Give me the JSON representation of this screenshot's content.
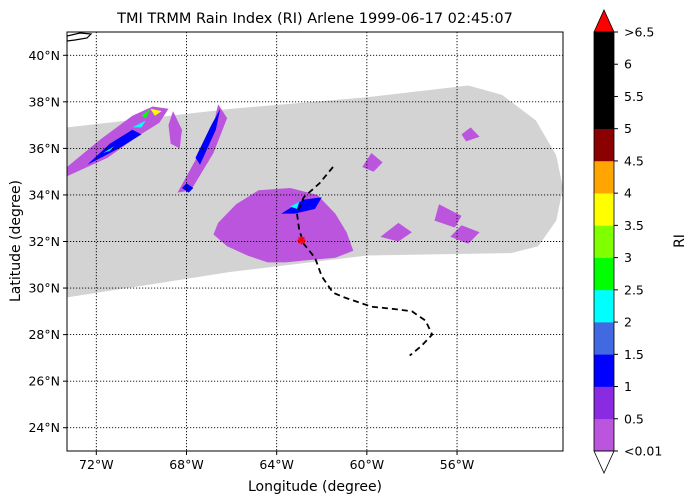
{
  "chart_data": {
    "type": "heatmap",
    "title": "TMI TRMM Rain Index (RI) Arlene 1999-06-17 02:45:07",
    "xlabel": "Longitude (degree)",
    "ylabel": "Latitude (degree)",
    "xlim": [
      -73.3,
      -51.3
    ],
    "ylim": [
      23.0,
      41.0
    ],
    "x_ticks": [
      {
        "value": -72,
        "label": "72°W"
      },
      {
        "value": -68,
        "label": "68°W"
      },
      {
        "value": -64,
        "label": "64°W"
      },
      {
        "value": -60,
        "label": "60°W"
      },
      {
        "value": -56,
        "label": "56°W"
      }
    ],
    "y_ticks": [
      {
        "value": 24,
        "label": "24°N"
      },
      {
        "value": 26,
        "label": "26°N"
      },
      {
        "value": 28,
        "label": "28°N"
      },
      {
        "value": 30,
        "label": "30°N"
      },
      {
        "value": 32,
        "label": "32°N"
      },
      {
        "value": 34,
        "label": "34°N"
      },
      {
        "value": 36,
        "label": "36°N"
      },
      {
        "value": 38,
        "label": "38°N"
      },
      {
        "value": 40,
        "label": "40°N"
      }
    ],
    "grid": "dotted",
    "swath_color": "#d3d3d3",
    "swath": [
      [
        -73.3,
        36.9
      ],
      [
        -66,
        37.7
      ],
      [
        -60,
        38.2
      ],
      [
        -55.5,
        38.7
      ],
      [
        -54,
        38.3
      ],
      [
        -52.5,
        37.2
      ],
      [
        -51.6,
        35.7
      ],
      [
        -51.3,
        34.3
      ],
      [
        -51.6,
        32.9
      ],
      [
        -52.4,
        31.8
      ],
      [
        -53.6,
        31.5
      ],
      [
        -60,
        31.4
      ],
      [
        -66,
        30.7
      ],
      [
        -73.3,
        29.6
      ]
    ],
    "rain_regions": [
      {
        "level": "purple",
        "poly": [
          [
            -66.6,
            32.8
          ],
          [
            -65.8,
            33.6
          ],
          [
            -64.8,
            34.2
          ],
          [
            -63.4,
            34.3
          ],
          [
            -62.2,
            34.0
          ],
          [
            -61.4,
            33.2
          ],
          [
            -60.9,
            32.4
          ],
          [
            -60.6,
            31.6
          ],
          [
            -61.4,
            31.3
          ],
          [
            -62.6,
            31.2
          ],
          [
            -63.6,
            31.1
          ],
          [
            -64.4,
            31.1
          ],
          [
            -65.3,
            31.4
          ],
          [
            -66.2,
            31.8
          ],
          [
            -66.8,
            32.3
          ]
        ]
      },
      {
        "level": "purple",
        "poly": [
          [
            -58.6,
            32.8
          ],
          [
            -58.0,
            32.4
          ],
          [
            -58.6,
            32.0
          ],
          [
            -59.4,
            32.2
          ]
        ]
      },
      {
        "level": "purple",
        "poly": [
          [
            -56.8,
            33.6
          ],
          [
            -55.8,
            33.1
          ],
          [
            -56.1,
            32.6
          ],
          [
            -57.0,
            32.9
          ]
        ]
      },
      {
        "level": "purple",
        "poly": [
          [
            -55.8,
            32.7
          ],
          [
            -55.0,
            32.4
          ],
          [
            -55.5,
            31.9
          ],
          [
            -56.3,
            32.2
          ]
        ]
      },
      {
        "level": "purple",
        "poly": [
          [
            -66.6,
            37.9
          ],
          [
            -66.2,
            37.3
          ],
          [
            -66.8,
            35.8
          ],
          [
            -67.8,
            34.2
          ],
          [
            -68.4,
            34.1
          ],
          [
            -67.6,
            35.5
          ],
          [
            -66.8,
            37.0
          ]
        ]
      },
      {
        "level": "purple",
        "poly": [
          [
            -68.6,
            37.6
          ],
          [
            -68.2,
            36.8
          ],
          [
            -68.3,
            36.0
          ],
          [
            -68.7,
            36.2
          ],
          [
            -68.8,
            37.0
          ]
        ]
      },
      {
        "level": "purple",
        "poly": [
          [
            -73.3,
            34.8
          ],
          [
            -71.5,
            35.6
          ],
          [
            -70.2,
            36.5
          ],
          [
            -69.2,
            37.1
          ],
          [
            -68.8,
            37.7
          ],
          [
            -69.5,
            37.8
          ],
          [
            -70.4,
            37.4
          ],
          [
            -71.8,
            36.4
          ],
          [
            -73.3,
            35.2
          ]
        ]
      },
      {
        "level": "purple",
        "poly": [
          [
            -59.8,
            35.8
          ],
          [
            -59.3,
            35.4
          ],
          [
            -59.7,
            35.0
          ],
          [
            -60.2,
            35.2
          ]
        ]
      },
      {
        "level": "purple",
        "poly": [
          [
            -55.4,
            36.9
          ],
          [
            -55.0,
            36.5
          ],
          [
            -55.6,
            36.3
          ],
          [
            -55.8,
            36.6
          ]
        ]
      },
      {
        "level": "purple",
        "poly": [
          [
            -63.6,
            32.0
          ],
          [
            -63.0,
            31.8
          ],
          [
            -62.9,
            31.5
          ],
          [
            -63.5,
            31.5
          ]
        ]
      },
      {
        "level": "blue",
        "poly": [
          [
            -63.8,
            33.2
          ],
          [
            -62.8,
            33.8
          ],
          [
            -62.0,
            33.9
          ],
          [
            -62.3,
            33.4
          ],
          [
            -63.2,
            33.2
          ]
        ]
      },
      {
        "level": "blue",
        "poly": [
          [
            -66.5,
            37.7
          ],
          [
            -66.7,
            36.8
          ],
          [
            -67.4,
            35.3
          ],
          [
            -67.6,
            35.6
          ],
          [
            -66.9,
            37.0
          ]
        ]
      },
      {
        "level": "blue",
        "poly": [
          [
            -68.0,
            34.5
          ],
          [
            -67.7,
            34.3
          ],
          [
            -67.9,
            34.1
          ],
          [
            -68.2,
            34.3
          ]
        ]
      },
      {
        "level": "blue",
        "poly": [
          [
            -72.4,
            35.3
          ],
          [
            -71.0,
            36.0
          ],
          [
            -70.0,
            36.6
          ],
          [
            -70.4,
            36.8
          ],
          [
            -71.4,
            36.2
          ]
        ]
      },
      {
        "level": "cyan",
        "poly": [
          [
            -63.4,
            33.5
          ],
          [
            -63.0,
            33.7
          ],
          [
            -63.1,
            33.4
          ]
        ]
      },
      {
        "level": "cyan",
        "poly": [
          [
            -71.7,
            35.8
          ],
          [
            -71.2,
            36.1
          ],
          [
            -71.4,
            35.9
          ]
        ]
      },
      {
        "level": "cyan",
        "poly": [
          [
            -70.4,
            36.9
          ],
          [
            -69.8,
            37.2
          ],
          [
            -70.0,
            36.9
          ]
        ]
      },
      {
        "level": "green",
        "poly": [
          [
            -70.0,
            37.4
          ],
          [
            -69.6,
            37.7
          ],
          [
            -69.8,
            37.3
          ]
        ]
      },
      {
        "level": "yellow",
        "poly": [
          [
            -69.6,
            37.7
          ],
          [
            -69.1,
            37.6
          ],
          [
            -69.4,
            37.4
          ]
        ]
      }
    ],
    "track": [
      [
        -61.5,
        35.2
      ],
      [
        -62.1,
        34.5
      ],
      [
        -62.8,
        33.9
      ],
      [
        -63.1,
        33.2
      ],
      [
        -63.0,
        32.5
      ],
      [
        -62.8,
        31.9
      ],
      [
        -62.3,
        31.3
      ],
      [
        -62.0,
        30.5
      ],
      [
        -61.5,
        29.8
      ],
      [
        -61.0,
        29.6
      ],
      [
        -60.4,
        29.4
      ],
      [
        -59.8,
        29.2
      ],
      [
        -58.8,
        29.1
      ],
      [
        -58.0,
        29.0
      ],
      [
        -57.4,
        28.6
      ],
      [
        -57.1,
        28.0
      ],
      [
        -57.6,
        27.5
      ],
      [
        -58.1,
        27.1
      ]
    ],
    "storm_center": [
      -62.9,
      32.05
    ],
    "colorbar": {
      "label": "RI",
      "tick_labels": [
        "<0.01",
        "0.5",
        "1",
        "1.5",
        "2",
        "2.5",
        "3",
        "3.5",
        "4",
        "4.5",
        "5",
        "5.5",
        "6",
        ">6.5"
      ],
      "colors": [
        "#bb55dd",
        "#8a2be2",
        "#0000ff",
        "#4169e1",
        "#00ffff",
        "#00ff00",
        "#7fff00",
        "#ffff00",
        "#ffa500",
        "#8b0000",
        "#000000",
        "#000000",
        "#000000"
      ],
      "under_color": "#ffffff",
      "over_color": "#ff0000"
    },
    "level_colors": {
      "purple": "#bb55dd",
      "blue": "#0000ff",
      "cyan": "#00ffff",
      "green": "#00ff00",
      "yellow": "#ffff00"
    }
  }
}
